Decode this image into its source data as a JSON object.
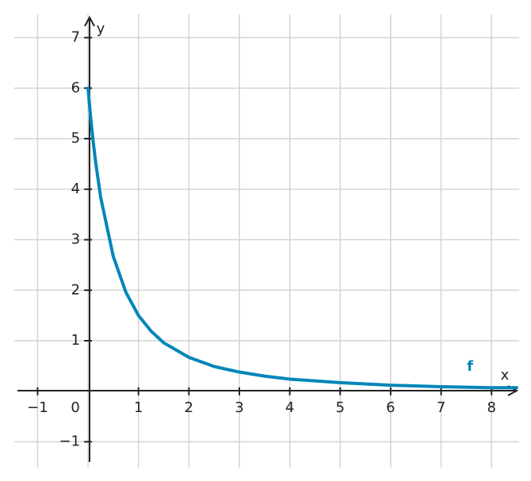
{
  "chart_data": {
    "type": "line",
    "x_label": "x",
    "y_label": "y",
    "x": [
      0,
      0.05,
      0.1,
      0.15,
      0.25,
      0.5,
      0.75,
      1,
      1.25,
      1.5,
      2,
      2.5,
      3,
      3.5,
      4,
      5,
      6,
      7,
      8,
      8.5
    ],
    "series": [
      {
        "name": "f",
        "color": "#0086b8",
        "values": [
          6,
          5.44,
          4.96,
          4.54,
          3.84,
          2.67,
          1.96,
          1.5,
          1.19,
          0.96,
          0.67,
          0.49,
          0.38,
          0.3,
          0.24,
          0.17,
          0.12,
          0.09,
          0.07,
          0.07
        ]
      }
    ],
    "xlim": [
      -1.4,
      8.5
    ],
    "ylim": [
      -1.4,
      7.4
    ],
    "xticks": [
      {
        "value": -1,
        "label": "−1"
      },
      0,
      1,
      2,
      3,
      4,
      5,
      6,
      7,
      8
    ],
    "yticks": [
      {
        "value": -1,
        "label": "−1"
      },
      1,
      2,
      3,
      4,
      5,
      6,
      7
    ],
    "grid": true
  }
}
